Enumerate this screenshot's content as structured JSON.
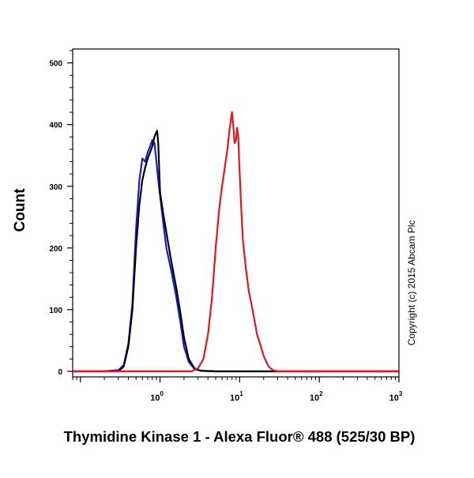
{
  "chart_data": {
    "type": "line",
    "xlabel": "Thymidine Kinase 1 - Alexa Fluor® 488 (525/30 BP)",
    "ylabel": "Count",
    "x_scale": "log",
    "xlim": [
      0.08,
      1000
    ],
    "ylim": [
      0,
      520
    ],
    "x_ticks": [
      {
        "value": 1,
        "base": "10",
        "exp": "0"
      },
      {
        "value": 10,
        "base": "10",
        "exp": "1"
      },
      {
        "value": 100,
        "base": "10",
        "exp": "2"
      },
      {
        "value": 1000,
        "base": "10",
        "exp": "3"
      }
    ],
    "y_ticks": [
      0,
      100,
      200,
      300,
      400,
      500
    ],
    "grid": false,
    "annotation": "Copyright (c) 2015 Abcam Plc",
    "series": [
      {
        "color": "#1a1adc",
        "x": [
          0.08,
          0.2,
          0.3,
          0.35,
          0.4,
          0.45,
          0.5,
          0.55,
          0.6,
          0.65,
          0.7,
          0.75,
          0.8,
          0.85,
          0.9,
          0.95,
          1.0,
          1.1,
          1.2,
          1.4,
          1.6,
          1.8,
          2.0,
          2.3,
          2.7,
          3.2,
          5,
          1000
        ],
        "y": [
          0,
          0,
          2,
          10,
          45,
          110,
          230,
          310,
          345,
          340,
          355,
          365,
          375,
          370,
          340,
          310,
          285,
          240,
          200,
          160,
          120,
          80,
          40,
          15,
          4,
          1,
          0,
          0
        ]
      },
      {
        "color": "#000000",
        "x": [
          0.08,
          0.3,
          0.35,
          0.4,
          0.45,
          0.5,
          0.55,
          0.6,
          0.65,
          0.7,
          0.75,
          0.8,
          0.85,
          0.88,
          0.92,
          0.95,
          1.0,
          1.1,
          1.2,
          1.4,
          1.6,
          1.8,
          2.0,
          2.3,
          2.7,
          3.2,
          5,
          1000
        ],
        "y": [
          0,
          0,
          8,
          40,
          100,
          200,
          270,
          310,
          330,
          345,
          355,
          365,
          380,
          385,
          390,
          370,
          290,
          255,
          225,
          175,
          135,
          95,
          55,
          20,
          5,
          1,
          0,
          0
        ]
      },
      {
        "color": "#e8141e",
        "x": [
          0.08,
          2.5,
          3.0,
          3.5,
          4.0,
          4.5,
          5.0,
          5.5,
          6.0,
          6.5,
          7.0,
          7.5,
          8.0,
          8.3,
          8.6,
          9.0,
          9.3,
          9.6,
          10.0,
          10.5,
          11.0,
          12.0,
          13.0,
          14.0,
          15.0,
          16.5,
          18.0,
          20.0,
          23.0,
          26.0,
          30.0,
          1000
        ],
        "y": [
          0,
          0,
          5,
          20,
          60,
          120,
          200,
          260,
          300,
          330,
          360,
          395,
          420,
          400,
          370,
          375,
          395,
          380,
          320,
          260,
          210,
          165,
          130,
          110,
          90,
          60,
          45,
          25,
          8,
          2,
          0,
          0
        ]
      }
    ]
  }
}
